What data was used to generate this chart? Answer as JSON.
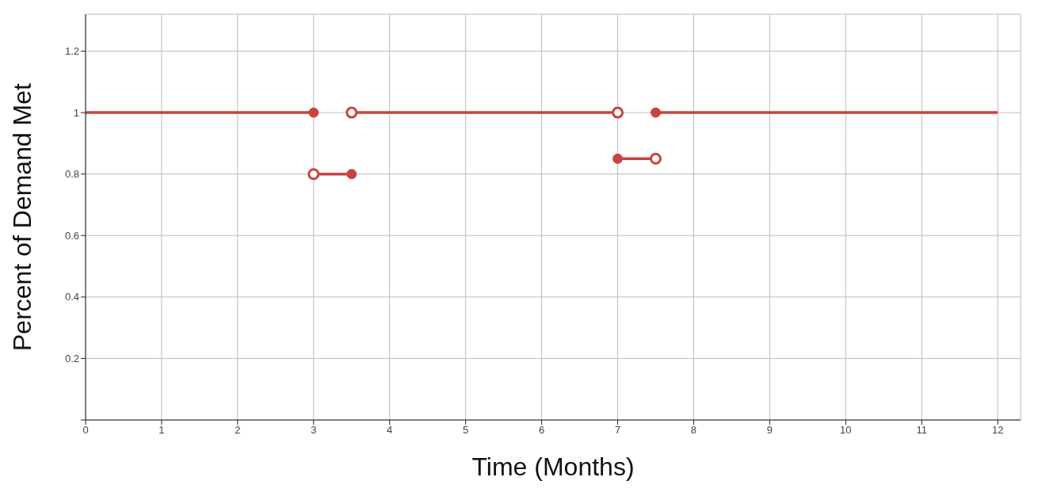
{
  "chart_data": {
    "type": "line",
    "xlabel": "Time (Months)",
    "ylabel": "Percent of Demand Met",
    "xlim": [
      0,
      12.3
    ],
    "ylim": [
      0,
      1.32
    ],
    "xticks": [
      0,
      1,
      2,
      3,
      4,
      5,
      6,
      7,
      8,
      9,
      10,
      11,
      12
    ],
    "yticks": [
      {
        "value": 0,
        "label": null
      },
      0.2,
      0.4,
      0.6,
      0.8,
      1,
      1.2
    ],
    "grid": true,
    "line_style": "solid",
    "series": [
      {
        "type": "line",
        "color": "#c74440",
        "x": [
          0,
          3
        ],
        "values": [
          1,
          1
        ],
        "marker": "none"
      },
      {
        "type": "line",
        "color": "#c74440",
        "x": [
          3,
          3.5
        ],
        "values": [
          0.8,
          0.8
        ],
        "marker": "none"
      },
      {
        "type": "line",
        "color": "#c74440",
        "x": [
          3.5,
          7
        ],
        "values": [
          1,
          1
        ],
        "marker": "none"
      },
      {
        "type": "line",
        "color": "#c74440",
        "x": [
          7,
          7.5
        ],
        "values": [
          0.85,
          0.85
        ],
        "marker": "none"
      },
      {
        "type": "line",
        "color": "#c74440",
        "x": [
          7.5,
          12
        ],
        "values": [
          1,
          1
        ],
        "marker": "none"
      },
      {
        "type": "scatter",
        "color": "#c74440",
        "x": [
          3,
          3.5,
          7,
          7.5
        ],
        "values": [
          1,
          0.8,
          0.85,
          1
        ],
        "marker": "circle"
      },
      {
        "type": "scatter",
        "color": "#ffffff",
        "x": [
          3,
          3.5,
          7,
          7.5
        ],
        "values": [
          0.8,
          1,
          1,
          0.85
        ],
        "marker": "circle"
      }
    ]
  }
}
